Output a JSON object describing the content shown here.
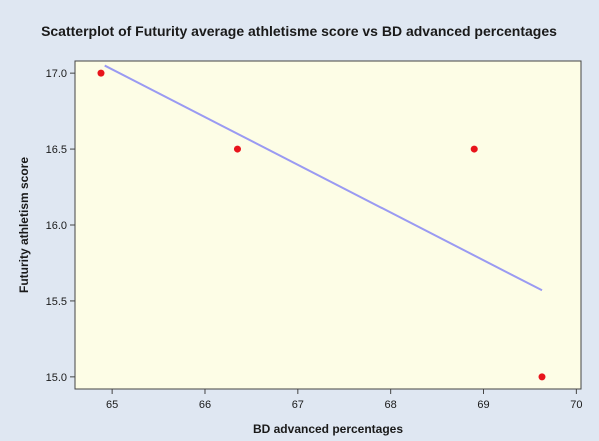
{
  "chart_data": {
    "type": "scatter",
    "title": "Scatterplot of Futurity average athletisme score vs BD advanced percentages",
    "xlabel": "BD advanced percentages",
    "ylabel": "Futurity  athletism score",
    "xlim": [
      64.6,
      70.05
    ],
    "ylim": [
      14.92,
      17.08
    ],
    "xticks": [
      65,
      66,
      67,
      68,
      69,
      70
    ],
    "yticks": [
      15.0,
      15.5,
      16.0,
      16.5,
      17.0
    ],
    "points": [
      {
        "x": 64.88,
        "y": 17.0
      },
      {
        "x": 66.35,
        "y": 16.5
      },
      {
        "x": 68.9,
        "y": 16.5
      },
      {
        "x": 69.63,
        "y": 15.0
      }
    ],
    "fit_line": {
      "x": [
        64.92,
        69.63
      ],
      "y": [
        17.05,
        15.57
      ]
    },
    "grid": false,
    "legend": "none",
    "colors": {
      "background": "#dfe7f2",
      "plot_background": "#fdfde6",
      "point": "#e8141b",
      "fit_line": "#9a9af2",
      "axis": "#444444"
    }
  }
}
